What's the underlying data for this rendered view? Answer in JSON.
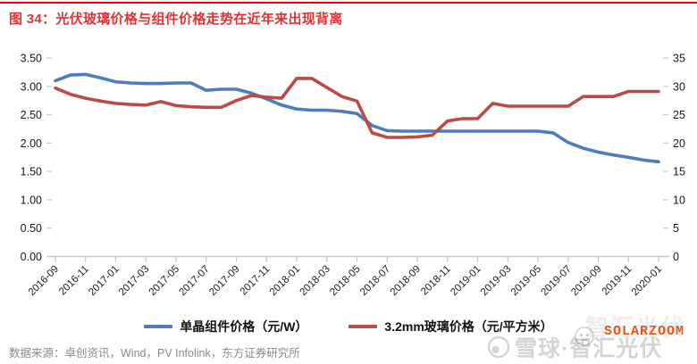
{
  "header": {
    "title": "图 34：光伏玻璃价格与组件价格走势在近年来出现背离"
  },
  "footer": {
    "source": "数据来源：卓创资讯，Wind，PV Infolink，东方证券研究所"
  },
  "watermarks": {
    "solarzoom": "SOLARZOOM",
    "xueqiu": "雪球·智汇光伏",
    "ghost": "智汇光伏"
  },
  "colors": {
    "accent_red": "#e03333",
    "top_rule": "#e8000d",
    "series_module": "#4f7cba",
    "series_glass": "#bd4b45",
    "axis_text": "#1a1a1a",
    "axis_line": "#c9c9c9",
    "source_text": "#8a8a8a",
    "solarzoom_orange": "#ea5514"
  },
  "chart_data": {
    "type": "line",
    "title": "图 34：光伏玻璃价格与组件价格走势在近年来出现背离",
    "grid": false,
    "legend_position": "bottom",
    "x": [
      "2016-09",
      "2016-10",
      "2016-11",
      "2016-12",
      "2017-01",
      "2017-02",
      "2017-03",
      "2017-04",
      "2017-05",
      "2017-06",
      "2017-07",
      "2017-08",
      "2017-09",
      "2017-10",
      "2017-11",
      "2017-12",
      "2018-01",
      "2018-02",
      "2018-03",
      "2018-04",
      "2018-05",
      "2018-06",
      "2018-07",
      "2018-08",
      "2018-09",
      "2018-10",
      "2018-11",
      "2018-12",
      "2019-01",
      "2019-02",
      "2019-03",
      "2019-04",
      "2019-05",
      "2019-06",
      "2019-07",
      "2019-08",
      "2019-09",
      "2019-10",
      "2019-11",
      "2019-12",
      "2020-01"
    ],
    "x_tick_labels": [
      "2016-09",
      "2016-11",
      "2017-01",
      "2017-03",
      "2017-05",
      "2017-07",
      "2017-09",
      "2017-11",
      "2018-01",
      "2018-03",
      "2018-05",
      "2018-07",
      "2018-09",
      "2018-11",
      "2019-01",
      "2019-03",
      "2019-05",
      "2019-07",
      "2019-09",
      "2019-11",
      "2020-01"
    ],
    "y_left_axis": {
      "min": 0,
      "max": 3.5,
      "tick_labels": [
        "3.50",
        "3.00",
        "2.50",
        "2.00",
        "1.50",
        "1.00",
        "0.50",
        "0.00"
      ]
    },
    "y_right_axis": {
      "min": 0,
      "max": 35,
      "tick_labels": [
        "35",
        "30",
        "25",
        "20",
        "15",
        "10",
        "5",
        "0"
      ]
    },
    "series": [
      {
        "name": "单晶组件价格（元/W）",
        "axis": "left",
        "color": "#4f7cba",
        "values": [
          3.1,
          3.2,
          3.21,
          3.15,
          3.08,
          3.06,
          3.05,
          3.05,
          3.06,
          3.06,
          2.93,
          2.95,
          2.95,
          2.88,
          2.78,
          2.67,
          2.6,
          2.58,
          2.58,
          2.56,
          2.52,
          2.31,
          2.22,
          2.21,
          2.21,
          2.21,
          2.21,
          2.21,
          2.21,
          2.21,
          2.21,
          2.21,
          2.21,
          2.18,
          2.01,
          1.91,
          1.84,
          1.79,
          1.75,
          1.7,
          1.67
        ]
      },
      {
        "name": "3.2mm玻璃价格（元/平方米）",
        "axis": "right",
        "color": "#bd4b45",
        "values": [
          29.7,
          28.6,
          27.9,
          27.4,
          27.0,
          26.8,
          26.7,
          27.3,
          26.6,
          26.4,
          26.3,
          26.3,
          27.5,
          28.4,
          28.1,
          27.9,
          31.4,
          31.4,
          29.8,
          28.2,
          27.4,
          21.8,
          21.0,
          21.0,
          21.1,
          21.4,
          23.9,
          24.3,
          24.3,
          27.0,
          26.5,
          26.5,
          26.5,
          26.5,
          26.5,
          28.2,
          28.2,
          28.2,
          29.1,
          29.1,
          29.1
        ]
      }
    ]
  }
}
